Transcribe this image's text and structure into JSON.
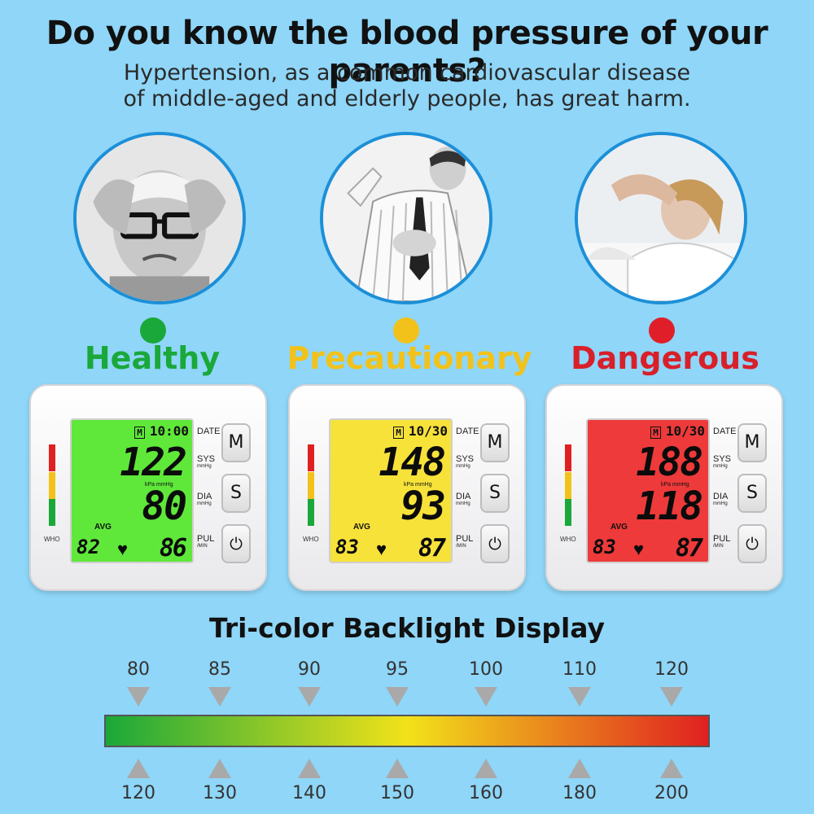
{
  "header": {
    "title": "Do you know the blood pressure of your parents?",
    "subtitle_line1": "Hypertension, as a common cardiovascular disease",
    "subtitle_line2": "of middle-aged and elderly people, has great harm."
  },
  "levels": [
    {
      "label": "Healthy",
      "color": "#1aa83a",
      "lcd_color": "#5fe83a",
      "time": "10:00",
      "sys": "122",
      "dia": "80",
      "avg": "82",
      "pul": "86"
    },
    {
      "label": "Precautionary",
      "color": "#f2c21a",
      "lcd_color": "#f7e23a",
      "time": "10/30",
      "sys": "148",
      "dia": "93",
      "avg": "83",
      "pul": "87"
    },
    {
      "label": "Dangerous",
      "color": "#d8202a",
      "lcd_color": "#ee3a3a",
      "time": "10/30",
      "sys": "188",
      "dia": "118",
      "avg": "83",
      "pul": "87"
    }
  ],
  "device": {
    "date_label": "DATE",
    "sys_label": "SYS",
    "dia_label": "DIA",
    "pul_label": "PUL",
    "unit_mmhg": "mmHg",
    "unit_min": "/MIN",
    "avg_label": "AVG",
    "who_label": "WHO",
    "kpa_label": "kPa",
    "btn_m": "M",
    "btn_s": "S",
    "power_icon": "power-icon",
    "m_badge": "M"
  },
  "scale": {
    "title": "Tri-color Backlight Display",
    "top_values": [
      "80",
      "85",
      "90",
      "95",
      "100",
      "110",
      "120"
    ],
    "bottom_values": [
      "120",
      "130",
      "140",
      "150",
      "160",
      "180",
      "200"
    ],
    "gradient": [
      "#1aa83a",
      "#f2e21a",
      "#e02020"
    ]
  }
}
